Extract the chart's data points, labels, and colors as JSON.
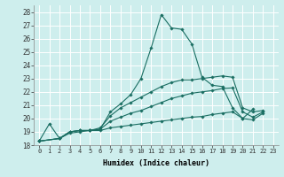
{
  "xlabel": "Humidex (Indice chaleur)",
  "bg_color": "#ceeeed",
  "grid_color": "#ffffff",
  "line_color": "#1a6e62",
  "xlim": [
    -0.5,
    23.5
  ],
  "ylim": [
    18,
    28.5
  ],
  "yticks": [
    18,
    19,
    20,
    21,
    22,
    23,
    24,
    25,
    26,
    27,
    28
  ],
  "xticks": [
    0,
    1,
    2,
    3,
    4,
    5,
    6,
    7,
    8,
    9,
    10,
    11,
    12,
    13,
    14,
    15,
    16,
    17,
    18,
    19,
    20,
    21,
    22,
    23
  ],
  "series": [
    {
      "x": [
        0,
        1,
        2,
        3,
        4,
        5,
        6,
        7,
        8,
        9,
        10,
        11,
        12,
        13,
        14,
        15,
        16,
        17,
        18,
        19,
        20,
        21
      ],
      "y": [
        18.3,
        19.6,
        18.5,
        19.0,
        19.1,
        19.1,
        19.2,
        20.5,
        21.1,
        21.8,
        23.0,
        25.3,
        27.8,
        26.8,
        26.7,
        25.6,
        23.1,
        22.5,
        22.4,
        20.8,
        20.0,
        20.7
      ]
    },
    {
      "x": [
        0,
        2,
        3,
        4,
        5,
        6,
        7,
        8,
        9,
        10,
        11,
        12,
        13,
        14,
        15,
        16,
        17,
        18,
        19,
        20,
        21,
        22
      ],
      "y": [
        18.3,
        18.5,
        19.0,
        19.1,
        19.1,
        19.3,
        20.2,
        20.8,
        21.2,
        21.6,
        22.0,
        22.4,
        22.7,
        22.9,
        22.9,
        23.0,
        23.1,
        23.2,
        23.1,
        20.8,
        20.5,
        20.6
      ]
    },
    {
      "x": [
        0,
        2,
        3,
        4,
        5,
        6,
        7,
        8,
        9,
        10,
        11,
        12,
        13,
        14,
        15,
        16,
        17,
        18,
        19,
        20,
        21,
        22
      ],
      "y": [
        18.3,
        18.5,
        19.0,
        19.1,
        19.1,
        19.2,
        19.8,
        20.1,
        20.4,
        20.6,
        20.9,
        21.2,
        21.5,
        21.7,
        21.9,
        22.0,
        22.1,
        22.25,
        22.3,
        20.5,
        20.1,
        20.5
      ]
    },
    {
      "x": [
        0,
        2,
        3,
        4,
        5,
        6,
        7,
        8,
        9,
        10,
        11,
        12,
        13,
        14,
        15,
        16,
        17,
        18,
        19,
        20,
        21,
        22
      ],
      "y": [
        18.3,
        18.5,
        18.9,
        19.0,
        19.1,
        19.1,
        19.3,
        19.4,
        19.5,
        19.6,
        19.7,
        19.8,
        19.9,
        20.0,
        20.1,
        20.15,
        20.3,
        20.4,
        20.5,
        20.0,
        19.9,
        20.4
      ]
    }
  ]
}
